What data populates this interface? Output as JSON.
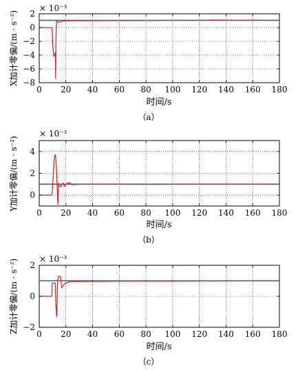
{
  "chart_data": [
    {
      "type": "line",
      "panel_label": "（a）",
      "exponent_label": "× 10⁻³",
      "ylabel": "X加计零偏/(m · s⁻²)",
      "xlabel": "时间/s",
      "xlim": [
        0,
        180
      ],
      "ylim": [
        -8,
        2
      ],
      "xticks": [
        "0",
        "20",
        "40",
        "60",
        "80",
        "100",
        "120",
        "140",
        "160",
        "180"
      ],
      "yticks": [
        "−8",
        "−6",
        "−4",
        "−2",
        "0",
        "2"
      ],
      "grid": "dotted",
      "series": [
        {
          "color": "#1f5fb4",
          "x": [
            0,
            180
          ],
          "y": [
            1.05,
            1.05
          ]
        },
        {
          "color": "#d62728",
          "x": [
            0,
            9.5,
            9.7,
            10,
            10.5,
            11,
            11.6,
            12.1,
            12.3,
            12.6,
            13,
            13.5,
            14,
            15,
            16,
            17,
            18,
            20,
            25,
            40,
            60,
            80,
            100,
            120,
            130,
            140,
            150,
            160,
            170,
            180
          ],
          "y": [
            0,
            0,
            -0.3,
            -2.2,
            -3.5,
            -4.2,
            -4.0,
            -3.6,
            -7.4,
            -1.0,
            0.9,
            1.05,
            0.8,
            0.75,
            0.85,
            0.9,
            0.95,
            0.98,
            1.0,
            1.0,
            1.02,
            1.03,
            1.05,
            1.05,
            1.1,
            1.08,
            1.05,
            1.1,
            1.05,
            1.05
          ]
        }
      ]
    },
    {
      "type": "line",
      "panel_label": "（b）",
      "exponent_label": "× 10⁻³",
      "ylabel": "Y加计零偏/(m · s⁻²)",
      "xlabel": "时间/s",
      "xlim": [
        0,
        180
      ],
      "ylim": [
        -1,
        5
      ],
      "xticks": [
        "0",
        "20",
        "40",
        "60",
        "80",
        "100",
        "120",
        "140",
        "160",
        "180"
      ],
      "yticks": [
        "0",
        "2",
        "4"
      ],
      "grid": "dotted",
      "series": [
        {
          "color": "#1f5fb4",
          "x": [
            0,
            180
          ],
          "y": [
            1.0,
            1.0
          ]
        },
        {
          "color": "#d62728",
          "x": [
            0,
            9.5,
            10,
            10.5,
            11,
            11.5,
            12,
            12.5,
            13,
            13.5,
            14,
            14.5,
            15,
            16,
            17,
            18,
            19,
            20,
            22,
            25,
            30,
            40,
            60,
            80,
            100,
            120,
            140,
            160,
            180
          ],
          "y": [
            0,
            0,
            0.8,
            1.8,
            2.8,
            3.5,
            3.7,
            3.3,
            2.0,
            0.6,
            -0.85,
            1.1,
            0.85,
            0.75,
            1.0,
            1.1,
            0.8,
            1.0,
            1.15,
            0.95,
            1.0,
            1.0,
            1.0,
            0.98,
            1.0,
            1.0,
            1.0,
            1.0,
            1.0
          ]
        }
      ]
    },
    {
      "type": "line",
      "panel_label": "（c）",
      "exponent_label": "× 10⁻³",
      "ylabel": "Z加计零偏/(m · s⁻²)",
      "xlabel": "时间/s",
      "xlim": [
        0,
        180
      ],
      "ylim": [
        -2,
        2
      ],
      "xticks": [
        "0",
        "20",
        "40",
        "60",
        "80",
        "100",
        "120",
        "140",
        "160",
        "180"
      ],
      "yticks": [
        "−2",
        "0",
        "2"
      ],
      "grid": "dotted",
      "series": [
        {
          "color": "#1f5fb4",
          "x": [
            0,
            180
          ],
          "y": [
            1.0,
            1.0
          ]
        },
        {
          "color": "#d62728",
          "x": [
            0,
            9.5,
            9.7,
            12,
            12.2,
            12.5,
            13,
            13.3,
            13.8,
            14.2,
            14.6,
            15,
            16,
            16.8,
            17.3,
            18,
            19,
            20,
            22,
            25,
            30,
            40,
            60,
            80,
            100,
            120,
            140,
            160,
            180
          ],
          "y": [
            0,
            0,
            0.85,
            0.85,
            0.4,
            -0.6,
            -1.3,
            -0.8,
            1.0,
            1.25,
            1.3,
            1.3,
            1.28,
            0.55,
            0.6,
            0.7,
            0.8,
            0.85,
            0.92,
            0.95,
            0.96,
            0.97,
            0.98,
            0.98,
            0.98,
            0.99,
            0.99,
            1.0,
            1.0
          ]
        }
      ]
    }
  ]
}
